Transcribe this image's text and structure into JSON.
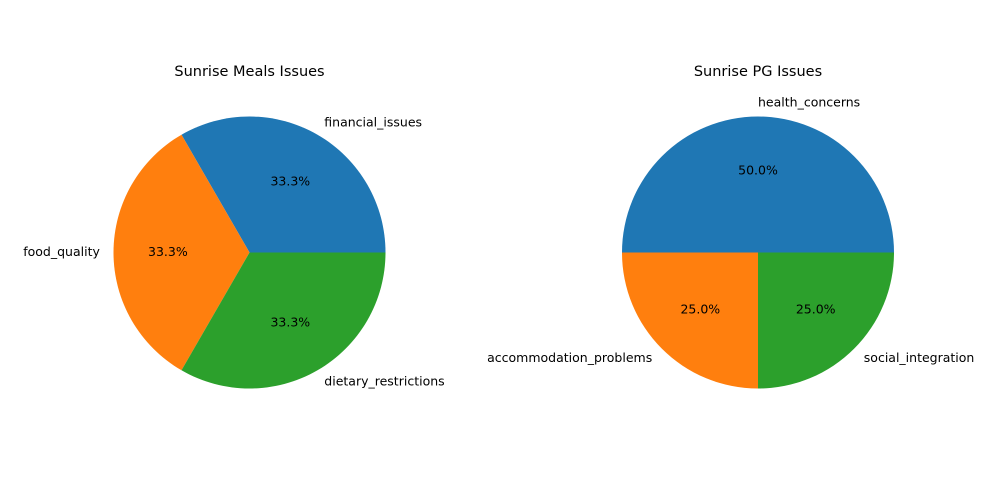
{
  "chart_data": [
    {
      "type": "pie",
      "title": "Sunrise Meals Issues",
      "labels": [
        "financial_issues",
        "food_quality",
        "dietary_restrictions"
      ],
      "values": [
        1,
        1,
        1
      ],
      "percent_labels": [
        "33.3%",
        "33.3%",
        "33.3%"
      ],
      "colors": [
        "#1f77b4",
        "#ff7f0e",
        "#2ca02c"
      ]
    },
    {
      "type": "pie",
      "title": "Sunrise PG Issues",
      "labels": [
        "health_concerns",
        "accommodation_problems",
        "social_integration"
      ],
      "values": [
        2,
        1,
        1
      ],
      "percent_labels": [
        "50.0%",
        "25.0%",
        "25.0%"
      ],
      "colors": [
        "#1f77b4",
        "#ff7f0e",
        "#2ca02c"
      ]
    }
  ]
}
